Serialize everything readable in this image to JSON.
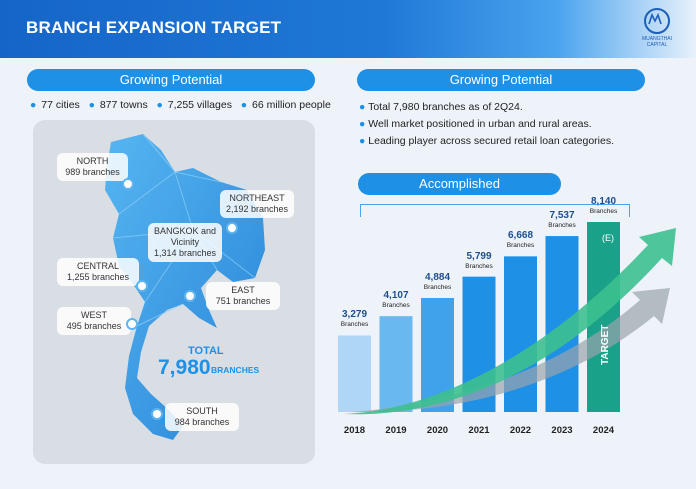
{
  "header": {
    "title": "BRANCH EXPANSION TARGET",
    "logo_text": "MUANGTHAI CAPITAL"
  },
  "left": {
    "pill": "Growing Potential",
    "bullets": [
      "77 cities",
      "877 towns",
      "7,255 villages",
      "66 million people"
    ],
    "regions": [
      {
        "name": "NORTH",
        "branches": "989 branches"
      },
      {
        "name": "NORTHEAST",
        "branches": "2,192 branches"
      },
      {
        "name": "BANGKOK and Vicinity",
        "branches": "1,314 branches"
      },
      {
        "name": "CENTRAL",
        "branches": "1,255 branches"
      },
      {
        "name": "EAST",
        "branches": "751 branches"
      },
      {
        "name": "WEST",
        "branches": "495 branches"
      },
      {
        "name": "SOUTH",
        "branches": "984 branches"
      }
    ],
    "total_label": "TOTAL",
    "total_value": "7,980",
    "total_unit": "BRANCHES"
  },
  "right": {
    "pill": "Growing Potential",
    "bullets": [
      "Total 7,980 branches as of 2Q24.",
      "Well market positioned in urban and rural areas.",
      "Leading player across secured retail loan categories."
    ],
    "accomplished_label": "Accomplished"
  },
  "chart_data": {
    "type": "bar",
    "categories": [
      "2018",
      "2019",
      "2020",
      "2021",
      "2022",
      "2023",
      "2024"
    ],
    "values": [
      3279,
      4107,
      4884,
      5799,
      6668,
      7537,
      8140
    ],
    "value_labels": [
      "3,279",
      "4,107",
      "4,884",
      "5,799",
      "6,668",
      "7,537",
      "8,140"
    ],
    "unit_label": "Branches",
    "estimate_label": "(E)",
    "target_label": "TARGET",
    "colors": {
      "bar": "#1e90e6",
      "target": "#1aa18a",
      "first": "#aed7f5"
    }
  }
}
